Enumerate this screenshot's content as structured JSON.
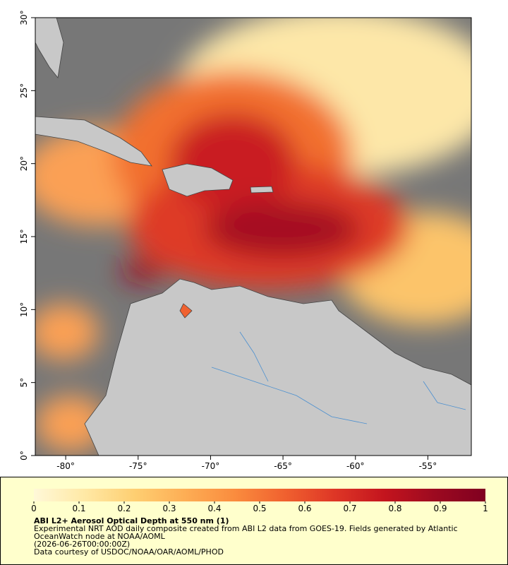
{
  "map": {
    "xlim": [
      -82.1,
      -52
    ],
    "ylim": [
      0,
      30
    ],
    "xticks": [
      {
        "value": -80,
        "label": "-80°"
      },
      {
        "value": -75,
        "label": "-75°"
      },
      {
        "value": -70,
        "label": "-70°"
      },
      {
        "value": -65,
        "label": "-65°"
      },
      {
        "value": -60,
        "label": "-60°"
      },
      {
        "value": -55,
        "label": "-55°"
      }
    ],
    "yticks": [
      {
        "value": 0,
        "label": "0°"
      },
      {
        "value": 5,
        "label": "5°"
      },
      {
        "value": 10,
        "label": "10°"
      },
      {
        "value": 15,
        "label": "15°"
      },
      {
        "value": 20,
        "label": "20°"
      },
      {
        "value": 25,
        "label": "25°"
      },
      {
        "value": 30,
        "label": "30°"
      }
    ]
  },
  "colorbar": {
    "lim": [
      0,
      1
    ],
    "ticks": [
      0,
      0.1,
      0.2,
      0.3,
      0.4,
      0.5,
      0.6,
      0.7,
      0.8,
      0.9,
      1
    ],
    "colors": [
      "#fff8d8",
      "#ffe9a6",
      "#fecf72",
      "#fdae55",
      "#fa8c3e",
      "#f0612f",
      "#de3626",
      "#c3141e",
      "#9c0a20",
      "#800020"
    ]
  },
  "caption": {
    "title": "ABI L2+ Aerosol Optical Depth at 550 nm (1)",
    "description": "Experimental NRT AOD daily composite created from ABI L2 data from GOES-19. Fields generated by Atlantic OceanWatch node at NOAA/AOML",
    "time": "(2026-06-26T00:00:00Z)",
    "credit": "Data courtesy of USDOC/NOAA/OAR/AOML/PHOD"
  }
}
